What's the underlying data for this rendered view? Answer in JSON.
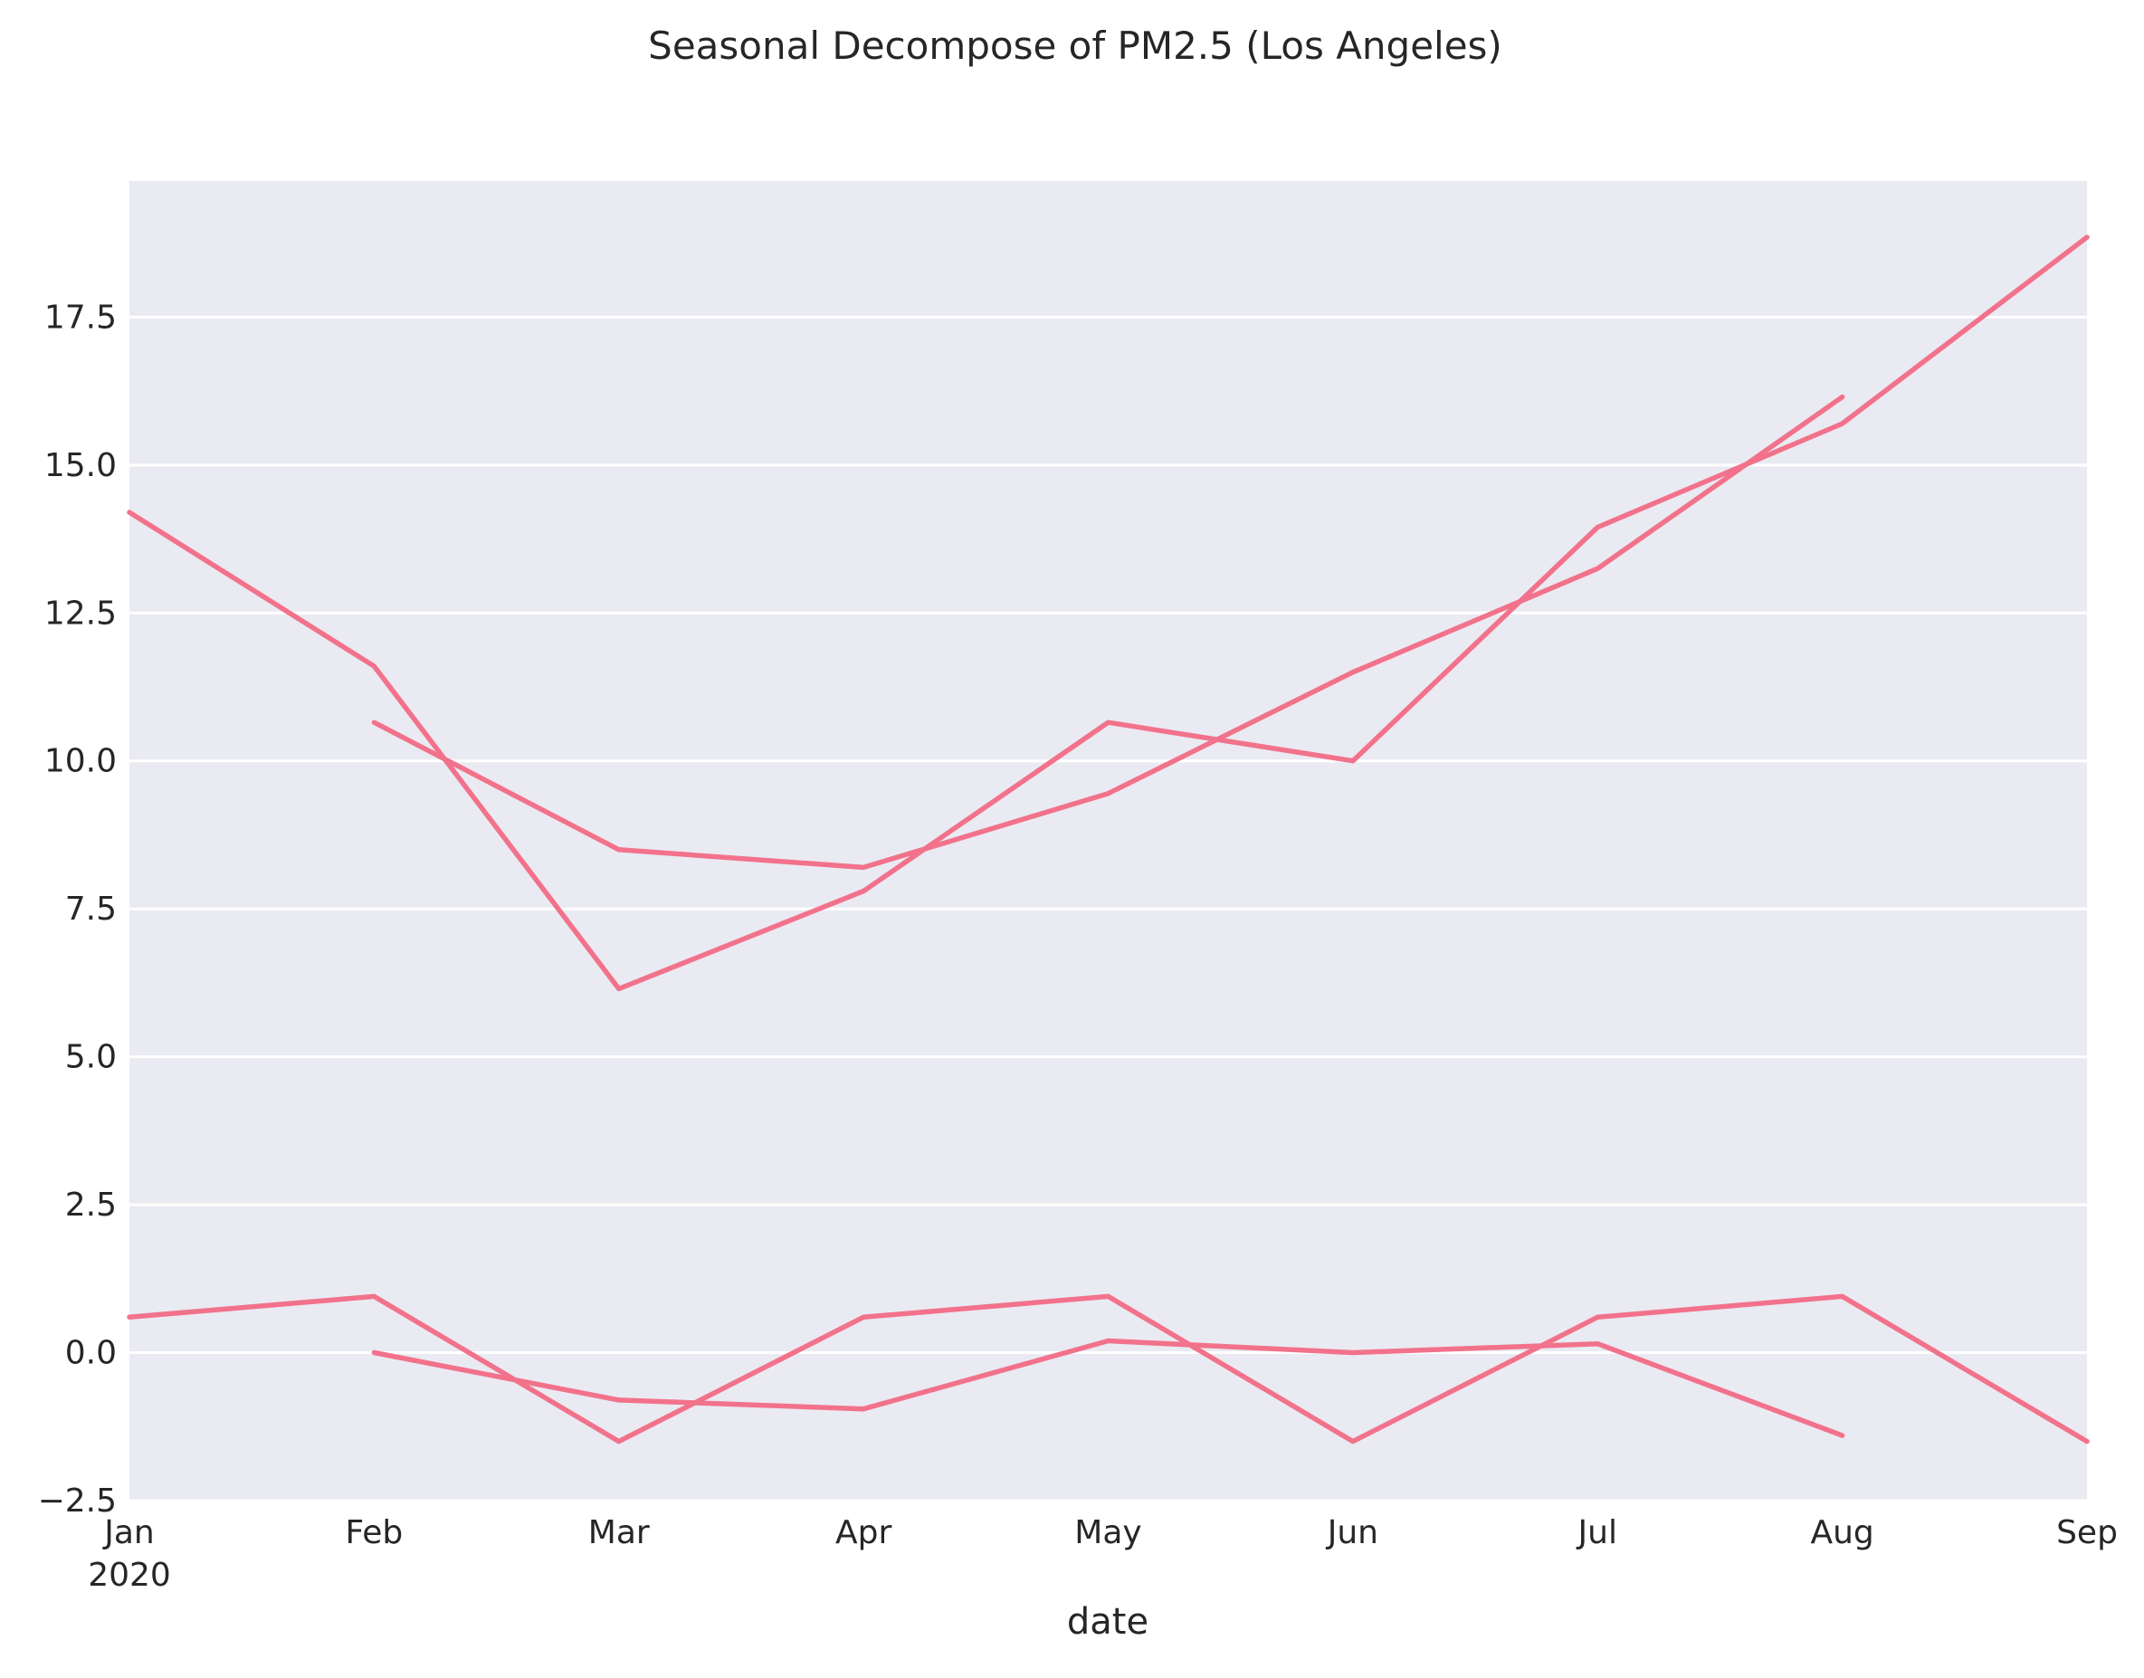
{
  "chart_data": {
    "type": "line",
    "title": "Seasonal Decompose of PM2.5 (Los Angeles)",
    "xlabel": "date",
    "ylabel": "",
    "x_tick_labels": [
      {
        "month": "Jan",
        "year": "2020"
      },
      {
        "month": "Feb"
      },
      {
        "month": "Mar"
      },
      {
        "month": "Apr"
      },
      {
        "month": "May"
      },
      {
        "month": "Jun"
      },
      {
        "month": "Jul"
      },
      {
        "month": "Aug"
      },
      {
        "month": "Sep"
      }
    ],
    "x": [
      "2020-01",
      "2020-02",
      "2020-03",
      "2020-04",
      "2020-05",
      "2020-06",
      "2020-07",
      "2020-08",
      "2020-09"
    ],
    "xlim": [
      "2020-01",
      "2020-09"
    ],
    "ylim": [
      -2.5,
      19.8
    ],
    "y_ticks": [
      "−2.5",
      "0.0",
      "2.5",
      "5.0",
      "7.5",
      "10.0",
      "12.5",
      "15.0",
      "17.5"
    ],
    "y_tick_values": [
      -2.5,
      0,
      2.5,
      5,
      7.5,
      10,
      12.5,
      15,
      17.5
    ],
    "grid": true,
    "colors": {
      "line": "#f2728b",
      "plot_bg": "#eaeaf2",
      "grid": "#ffffff"
    },
    "series": [
      {
        "values": [
          14.2,
          11.6,
          6.15,
          7.8,
          10.65,
          10.0,
          13.95,
          15.7,
          18.85
        ]
      },
      {
        "values": [
          null,
          10.65,
          8.5,
          8.2,
          9.45,
          11.5,
          13.25,
          16.15,
          null
        ]
      },
      {
        "values": [
          0.6,
          0.95,
          -1.5,
          0.6,
          0.95,
          -1.5,
          0.6,
          0.95,
          -1.5
        ]
      },
      {
        "values": [
          null,
          0.0,
          -0.8,
          -0.95,
          0.2,
          0.0,
          0.15,
          -1.4,
          null
        ]
      }
    ]
  }
}
